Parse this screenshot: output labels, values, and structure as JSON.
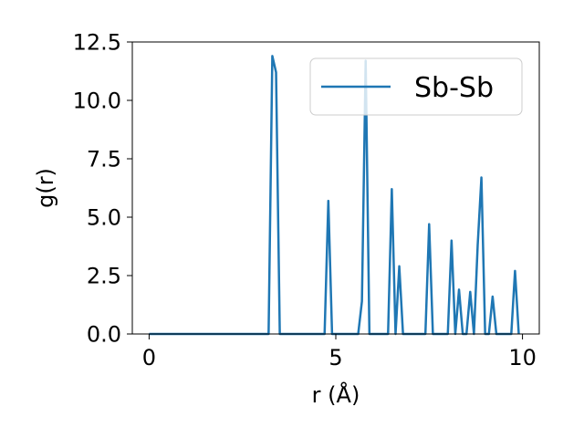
{
  "chart_data": {
    "type": "line",
    "title": "",
    "xlabel": "r (Å)",
    "ylabel": "g(r)",
    "xlim": [
      -0.45,
      10.45
    ],
    "ylim": [
      0,
      12.5
    ],
    "xticks": [
      0,
      5,
      10
    ],
    "xtick_labels": [
      "0",
      "5",
      "10"
    ],
    "yticks": [
      0,
      2.5,
      5,
      7.5,
      10,
      12.5
    ],
    "ytick_labels": [
      "0.0",
      "2.5",
      "5.0",
      "7.5",
      "10.0",
      "12.5"
    ],
    "grid": false,
    "legend_position": "top-right",
    "series": [
      {
        "name": "Sb-Sb",
        "color": "#1f77b4",
        "x": [
          0.0,
          3.2,
          3.3,
          3.4,
          3.5,
          4.7,
          4.8,
          4.9,
          5.6,
          5.7,
          5.8,
          5.9,
          6.0,
          6.4,
          6.5,
          6.6,
          6.7,
          6.8,
          7.4,
          7.5,
          7.6,
          8.0,
          8.1,
          8.2,
          8.3,
          8.4,
          8.5,
          8.6,
          8.7,
          8.8,
          8.9,
          9.0,
          9.1,
          9.2,
          9.3,
          9.7,
          9.8,
          9.9
        ],
        "y": [
          0.0,
          0.0,
          11.9,
          11.2,
          0.0,
          0.0,
          5.7,
          0.0,
          0.0,
          1.4,
          11.7,
          0.0,
          0.0,
          0.0,
          6.2,
          0.0,
          2.9,
          0.0,
          0.0,
          4.7,
          0.0,
          0.0,
          4.0,
          0.0,
          1.9,
          0.0,
          0.0,
          1.8,
          0.0,
          3.8,
          6.7,
          0.0,
          0.0,
          1.6,
          0.0,
          0.0,
          2.7,
          0.0
        ]
      }
    ]
  }
}
